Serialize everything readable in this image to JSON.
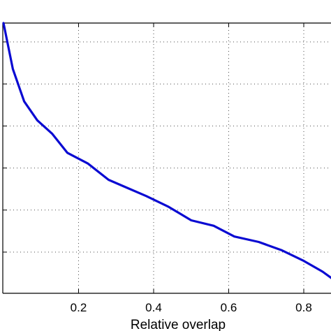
{
  "chart_data": {
    "type": "line",
    "xlabel": "Relative overlap",
    "ylabel": "",
    "xlim": [
      0.0,
      0.9
    ],
    "xticks": [
      0.2,
      0.4,
      0.6,
      0.8
    ],
    "xtick_labels": [
      "0.2",
      "0.4",
      "0.6",
      "0.8"
    ],
    "y_gridline_count": 6,
    "grid": true,
    "series": [
      {
        "color": "#0a0ad2",
        "x": [
          0.0,
          0.025,
          0.055,
          0.09,
          0.13,
          0.17,
          0.225,
          0.28,
          0.33,
          0.38,
          0.44,
          0.5,
          0.56,
          0.615,
          0.68,
          0.74,
          0.8,
          0.85,
          0.89,
          0.9
        ],
        "y": [
          1.0,
          0.83,
          0.71,
          0.64,
          0.59,
          0.52,
          0.48,
          0.42,
          0.39,
          0.36,
          0.32,
          0.27,
          0.25,
          0.21,
          0.19,
          0.16,
          0.12,
          0.08,
          0.04,
          0.02
        ]
      }
    ]
  }
}
